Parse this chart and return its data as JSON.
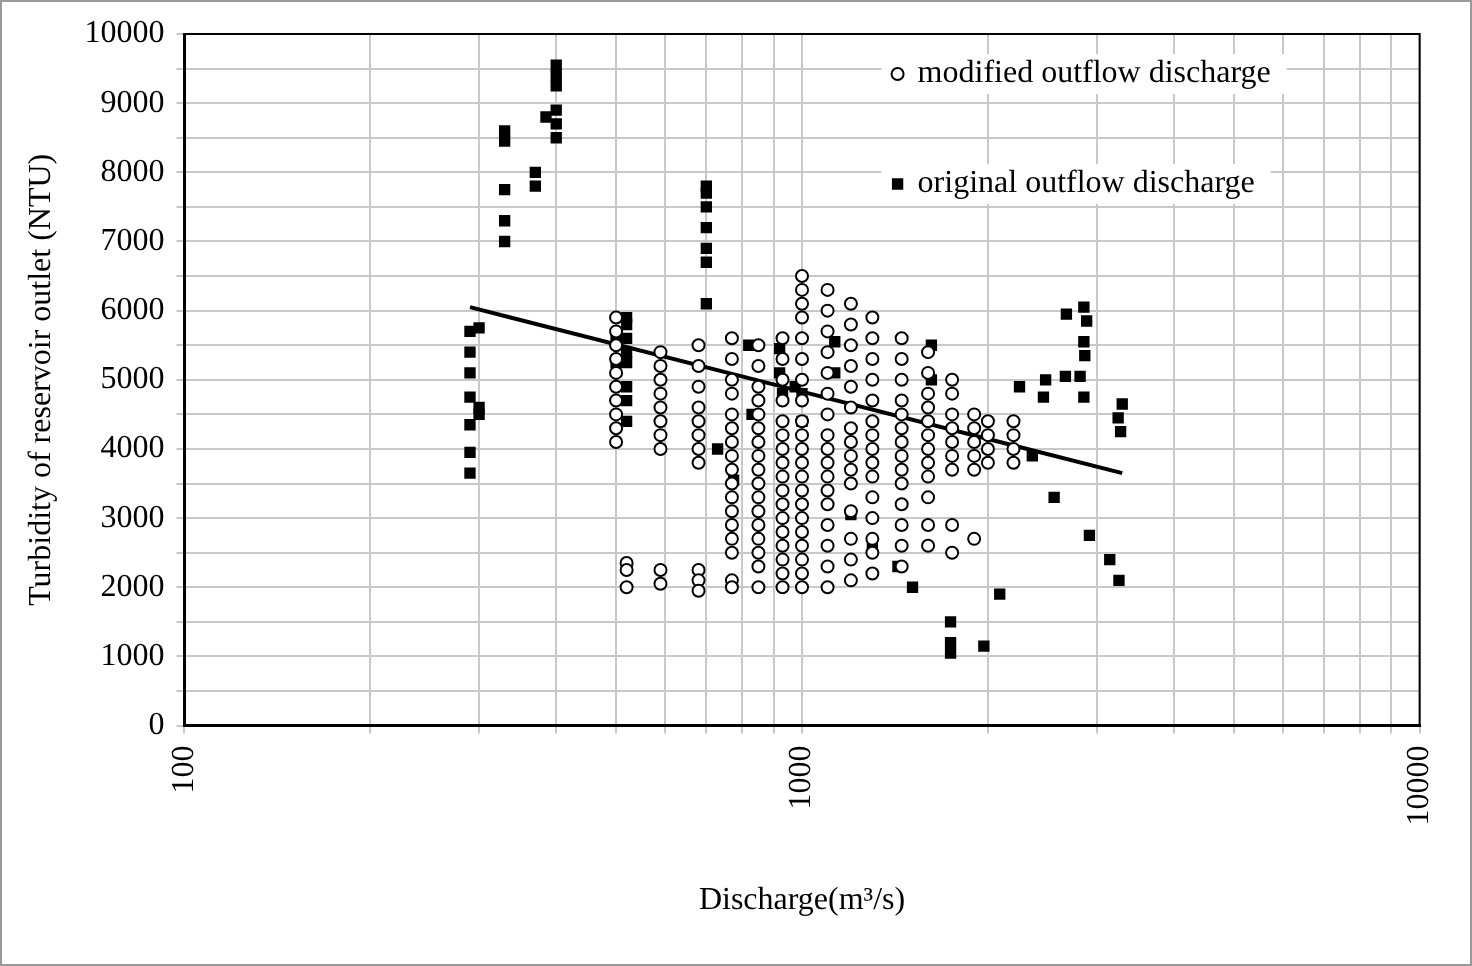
{
  "chart_data": {
    "type": "scatter",
    "xlabel": "Discharge(m³/s)",
    "ylabel": "Turbidity of reservoir outlet (NTU)",
    "log": "x",
    "grid": true,
    "legend": "top right",
    "xlim": [
      100,
      10000
    ],
    "xticks": [
      100,
      {
        "value": 200,
        "label": null
      },
      {
        "value": 300,
        "label": null
      },
      {
        "value": 400,
        "label": null
      },
      {
        "value": 500,
        "label": null
      },
      {
        "value": 600,
        "label": null
      },
      {
        "value": 700,
        "label": null
      },
      {
        "value": 800,
        "label": null
      },
      {
        "value": 900,
        "label": null
      },
      1000,
      {
        "value": 2000,
        "label": null
      },
      {
        "value": 3000,
        "label": null
      },
      {
        "value": 4000,
        "label": null
      },
      {
        "value": 5000,
        "label": null
      },
      {
        "value": 6000,
        "label": null
      },
      {
        "value": 7000,
        "label": null
      },
      {
        "value": 8000,
        "label": null
      },
      {
        "value": 9000,
        "label": null
      },
      10000
    ],
    "ylim": [
      0,
      10000
    ],
    "yticks": [
      0,
      {
        "value": 500,
        "label": null
      },
      1000,
      {
        "value": 1500,
        "label": null
      },
      2000,
      {
        "value": 2500,
        "label": null
      },
      3000,
      {
        "value": 3500,
        "label": null
      },
      4000,
      {
        "value": 4500,
        "label": null
      },
      5000,
      {
        "value": 5500,
        "label": null
      },
      6000,
      {
        "value": 6500,
        "label": null
      },
      7000,
      {
        "value": 7500,
        "label": null
      },
      8000,
      {
        "value": 8500,
        "label": null
      },
      9000,
      {
        "value": 9500,
        "label": null
      },
      10000
    ],
    "series": [
      {
        "name": "modified outflow discharge",
        "marker": "circle",
        "color": "#000000",
        "x": [
          500,
          500,
          500,
          500,
          500,
          500,
          500,
          500,
          500,
          500,
          520,
          520,
          520,
          590,
          590,
          590,
          590,
          590,
          590,
          590,
          590,
          590,
          590,
          680,
          680,
          680,
          680,
          680,
          680,
          680,
          680,
          680,
          680,
          680,
          770,
          770,
          770,
          770,
          770,
          770,
          770,
          770,
          770,
          770,
          770,
          770,
          770,
          770,
          770,
          770,
          770,
          850,
          850,
          850,
          850,
          850,
          850,
          850,
          850,
          850,
          850,
          850,
          850,
          850,
          850,
          850,
          850,
          850,
          930,
          930,
          930,
          930,
          930,
          930,
          930,
          930,
          930,
          930,
          930,
          930,
          930,
          930,
          930,
          930,
          930,
          1000,
          1000,
          1000,
          1000,
          1000,
          1000,
          1000,
          1000,
          1000,
          1000,
          1000,
          1000,
          1000,
          1000,
          1000,
          1000,
          1000,
          1000,
          1000,
          1000,
          1000,
          1100,
          1100,
          1100,
          1100,
          1100,
          1100,
          1100,
          1100,
          1100,
          1100,
          1100,
          1100,
          1100,
          1100,
          1100,
          1100,
          1100,
          1200,
          1200,
          1200,
          1200,
          1200,
          1200,
          1200,
          1200,
          1200,
          1200,
          1200,
          1200,
          1200,
          1200,
          1200,
          1300,
          1300,
          1300,
          1300,
          1300,
          1300,
          1300,
          1300,
          1300,
          1300,
          1300,
          1300,
          1300,
          1300,
          1300,
          1450,
          1450,
          1450,
          1450,
          1450,
          1450,
          1450,
          1450,
          1450,
          1450,
          1450,
          1450,
          1450,
          1450,
          1600,
          1600,
          1600,
          1600,
          1600,
          1600,
          1600,
          1600,
          1600,
          1600,
          1600,
          1600,
          1750,
          1750,
          1750,
          1750,
          1750,
          1750,
          1750,
          1750,
          1750,
          1900,
          1900,
          1900,
          1900,
          1900,
          1900,
          2000,
          2000,
          2000,
          2000,
          2200,
          2200,
          2200,
          2200
        ],
        "values": [
          5900,
          5700,
          5500,
          5300,
          5100,
          4900,
          4700,
          4500,
          4300,
          4100,
          2350,
          2250,
          2000,
          5400,
          5200,
          5000,
          4800,
          4600,
          4400,
          4200,
          4000,
          2250,
          2050,
          5500,
          5200,
          4900,
          4600,
          4400,
          4200,
          4000,
          3800,
          2250,
          2100,
          1950,
          5600,
          5300,
          5000,
          4800,
          4500,
          4300,
          4100,
          3900,
          3700,
          3500,
          3300,
          3100,
          2900,
          2700,
          2500,
          2100,
          2000,
          5500,
          5200,
          4900,
          4700,
          4500,
          4300,
          4100,
          3900,
          3700,
          3500,
          3300,
          3100,
          2900,
          2700,
          2500,
          2300,
          2000,
          5600,
          5300,
          5000,
          4700,
          4400,
          4200,
          4000,
          3800,
          3600,
          3400,
          3200,
          3000,
          2800,
          2600,
          2400,
          2200,
          2000,
          6500,
          6300,
          6100,
          5900,
          5600,
          5300,
          5000,
          4700,
          4400,
          4200,
          4000,
          3800,
          3600,
          3400,
          3200,
          3000,
          2800,
          2600,
          2400,
          2200,
          2000,
          6300,
          6000,
          5700,
          5400,
          5100,
          4800,
          4500,
          4200,
          4000,
          3800,
          3600,
          3400,
          3200,
          2900,
          2600,
          2300,
          2000,
          6100,
          5800,
          5500,
          5200,
          4900,
          4600,
          4300,
          4100,
          3900,
          3700,
          3500,
          3100,
          2700,
          2400,
          2100,
          5900,
          5600,
          5300,
          5000,
          4700,
          4400,
          4200,
          4000,
          3800,
          3600,
          3300,
          3000,
          2700,
          2500,
          2200,
          5600,
          5300,
          5000,
          4700,
          4500,
          4300,
          4100,
          3900,
          3700,
          3500,
          3200,
          2900,
          2600,
          2300,
          5400,
          5100,
          4800,
          4600,
          4400,
          4200,
          4000,
          3800,
          3600,
          3300,
          2900,
          2600,
          5000,
          4800,
          4500,
          4300,
          4100,
          3900,
          3700,
          2900,
          2500,
          4500,
          4300,
          4100,
          3900,
          3700,
          2700,
          4400,
          4200,
          4000,
          3800,
          4400,
          4200,
          4000,
          3800
        ]
      },
      {
        "name": "original outflow discharge",
        "marker": "square",
        "color": "#000000",
        "x": [
          290,
          290,
          290,
          290,
          290,
          290,
          290,
          300,
          300,
          300,
          330,
          330,
          330,
          330,
          330,
          370,
          370,
          385,
          400,
          400,
          400,
          400,
          400,
          400,
          500,
          500,
          520,
          520,
          520,
          520,
          520,
          520,
          520,
          520,
          700,
          700,
          700,
          700,
          700,
          700,
          700,
          730,
          775,
          820,
          830,
          920,
          920,
          930,
          975,
          1000,
          1000,
          1130,
          1130,
          1200,
          1300,
          1430,
          1510,
          1620,
          1620,
          1740,
          1740,
          1740,
          1970,
          2090,
          2250,
          2360,
          2460,
          2480,
          2560,
          2670,
          2680,
          2820,
          2860,
          2860,
          2860,
          2870,
          2890,
          2920,
          3150,
          3250,
          3260,
          3280,
          3300
        ],
        "values": [
          3650,
          3950,
          4350,
          4750,
          5100,
          5400,
          5700,
          5750,
          4600,
          4500,
          8600,
          8450,
          7750,
          7300,
          7000,
          8000,
          7800,
          8800,
          9550,
          9400,
          9250,
          8900,
          8700,
          8500,
          5600,
          5250,
          5900,
          5800,
          5600,
          5400,
          5250,
          4900,
          4700,
          4400,
          7800,
          7700,
          7500,
          7200,
          6900,
          6700,
          6100,
          4000,
          3550,
          5500,
          4500,
          5450,
          5100,
          4800,
          4900,
          4800,
          4400,
          5550,
          5100,
          3050,
          2600,
          2300,
          2000,
          5500,
          5000,
          1500,
          1200,
          1050,
          1150,
          1900,
          4900,
          3900,
          4750,
          5000,
          3300,
          5050,
          5950,
          5050,
          6050,
          5550,
          4750,
          5350,
          5850,
          2750,
          2400,
          4450,
          2100,
          4250,
          4650
        ]
      },
      {
        "type": "line",
        "marker": "none",
        "line_style": "solid",
        "color": "#000000",
        "x": [
          290,
          3300
        ],
        "values": [
          6050,
          3650
        ]
      }
    ]
  }
}
